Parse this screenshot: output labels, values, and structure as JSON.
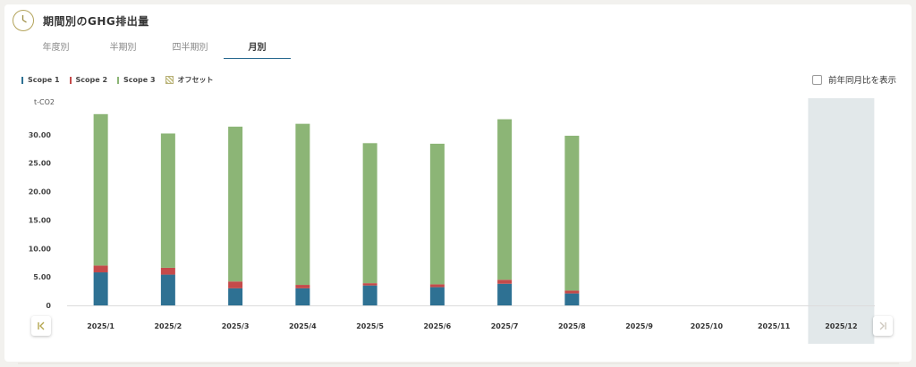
{
  "header": {
    "title": "期間別のGHG排出量",
    "icon": "clock-icon"
  },
  "tabs": [
    {
      "label": "年度別",
      "active": false
    },
    {
      "label": "半期別",
      "active": false
    },
    {
      "label": "四半期別",
      "active": false
    },
    {
      "label": "月別",
      "active": true
    }
  ],
  "legend": [
    {
      "label": "Scope 1",
      "color": "#2e7193",
      "type": "bar"
    },
    {
      "label": "Scope 2",
      "color": "#c44a4a",
      "type": "bar"
    },
    {
      "label": "Scope 3",
      "color": "#8cb576",
      "type": "bar"
    },
    {
      "label": "オフセット",
      "color": "#c8c48a",
      "type": "hatch"
    }
  ],
  "yoy_toggle": {
    "label": "前年同月比を表示",
    "checked": false
  },
  "nav": {
    "prev_icon": "chevron-left-icon",
    "next_icon": "chevron-right-icon"
  },
  "chart_data": {
    "type": "bar",
    "stacked": true,
    "ylabel": "t-CO2",
    "ylim": [
      0,
      35
    ],
    "yticks": [
      "0",
      "5.00",
      "10.00",
      "15.00",
      "20.00",
      "25.00",
      "30.00"
    ],
    "ytick_values": [
      0,
      5,
      10,
      15,
      20,
      25,
      30
    ],
    "categories": [
      "2025/1",
      "2025/2",
      "2025/3",
      "2025/4",
      "2025/5",
      "2025/6",
      "2025/7",
      "2025/8",
      "2025/9",
      "2025/10",
      "2025/11",
      "2025/12"
    ],
    "series": [
      {
        "name": "Scope 1",
        "color": "#2e7193",
        "values": [
          5.8,
          5.4,
          3.0,
          3.0,
          3.5,
          3.2,
          3.8,
          2.1,
          null,
          null,
          null,
          null
        ]
      },
      {
        "name": "Scope 2",
        "color": "#c44a4a",
        "values": [
          1.2,
          1.2,
          1.2,
          0.6,
          0.4,
          0.5,
          0.7,
          0.5,
          null,
          null,
          null,
          null
        ]
      },
      {
        "name": "Scope 3",
        "color": "#8cb576",
        "values": [
          26.6,
          23.6,
          27.2,
          28.3,
          24.6,
          24.7,
          28.2,
          27.2,
          null,
          null,
          null,
          null
        ]
      }
    ],
    "highlighted_category": "2025/12",
    "grid": false,
    "legend_position": "top-left"
  }
}
